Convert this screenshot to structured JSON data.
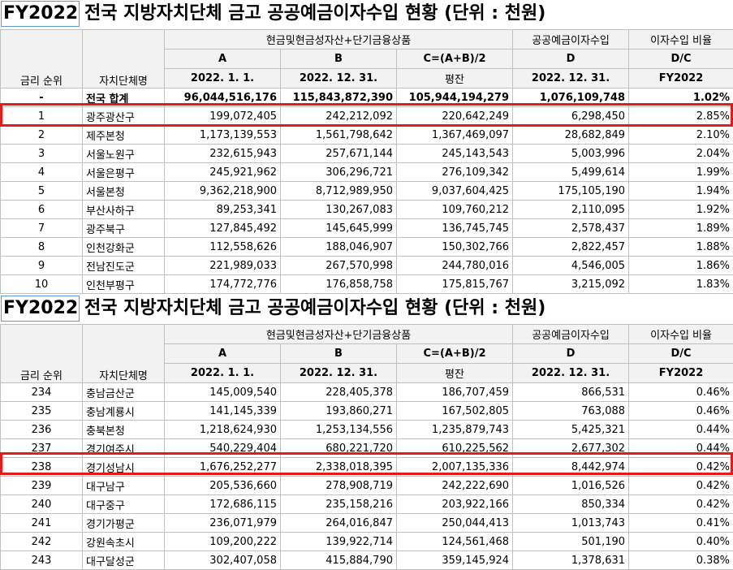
{
  "title": {
    "fy": "FY2022",
    "text": "전국 지방자치단체 금고 공공예금이자수입 현황 (단위 : 천원)"
  },
  "header": {
    "rank": "금리 순위",
    "name": "자치단체명",
    "group1": "현금및현금성자산+단기금융상품",
    "group2": "공공예금이자수입",
    "group3": "이자수입 비율",
    "colA": "A",
    "colB": "B",
    "colC": "C=(A+B)/2",
    "colD": "D",
    "colDC": "D/C",
    "dateA": "2022. 1. 1.",
    "dateB": "2022. 12. 31.",
    "avg": "평잔",
    "dateD": "2022. 12. 31.",
    "fyDC": "FY2022"
  },
  "table1": [
    {
      "rank": "-",
      "name": "전국 합계",
      "a": "96,044,516,176",
      "b": "115,843,872,390",
      "c": "105,944,194,279",
      "d": "1,076,109,748",
      "ratio": "1.02%"
    },
    {
      "rank": "1",
      "name": "광주광산구",
      "a": "199,072,405",
      "b": "242,212,092",
      "c": "220,642,249",
      "d": "6,298,450",
      "ratio": "2.85%"
    },
    {
      "rank": "2",
      "name": "제주본청",
      "a": "1,173,139,553",
      "b": "1,561,798,642",
      "c": "1,367,469,097",
      "d": "28,682,849",
      "ratio": "2.10%"
    },
    {
      "rank": "3",
      "name": "서울노원구",
      "a": "232,615,943",
      "b": "257,671,144",
      "c": "245,143,543",
      "d": "5,003,996",
      "ratio": "2.04%"
    },
    {
      "rank": "4",
      "name": "서울은평구",
      "a": "245,921,962",
      "b": "306,296,721",
      "c": "276,109,342",
      "d": "5,499,614",
      "ratio": "1.99%"
    },
    {
      "rank": "5",
      "name": "서울본청",
      "a": "9,362,218,900",
      "b": "8,712,989,950",
      "c": "9,037,604,425",
      "d": "175,105,190",
      "ratio": "1.94%"
    },
    {
      "rank": "6",
      "name": "부산사하구",
      "a": "89,253,341",
      "b": "130,267,083",
      "c": "109,760,212",
      "d": "2,110,095",
      "ratio": "1.92%"
    },
    {
      "rank": "7",
      "name": "광주북구",
      "a": "127,845,492",
      "b": "145,645,999",
      "c": "136,745,745",
      "d": "2,578,437",
      "ratio": "1.89%"
    },
    {
      "rank": "8",
      "name": "인천강화군",
      "a": "112,558,626",
      "b": "188,046,907",
      "c": "150,302,766",
      "d": "2,822,457",
      "ratio": "1.88%"
    },
    {
      "rank": "9",
      "name": "전남진도군",
      "a": "221,989,033",
      "b": "267,570,998",
      "c": "244,780,016",
      "d": "4,546,005",
      "ratio": "1.86%"
    },
    {
      "rank": "10",
      "name": "인천부평구",
      "a": "174,772,776",
      "b": "176,858,758",
      "c": "175,815,767",
      "d": "3,215,092",
      "ratio": "1.83%"
    }
  ],
  "table2": [
    {
      "rank": "234",
      "name": "충남금산군",
      "a": "145,009,540",
      "b": "228,405,378",
      "c": "186,707,459",
      "d": "866,531",
      "ratio": "0.46%"
    },
    {
      "rank": "235",
      "name": "충남계룡시",
      "a": "141,145,339",
      "b": "193,860,271",
      "c": "167,502,805",
      "d": "763,088",
      "ratio": "0.46%"
    },
    {
      "rank": "236",
      "name": "충북본청",
      "a": "1,218,624,930",
      "b": "1,253,134,556",
      "c": "1,235,879,743",
      "d": "5,425,321",
      "ratio": "0.44%"
    },
    {
      "rank": "237",
      "name": "경기여주시",
      "a": "540,229,404",
      "b": "680,221,720",
      "c": "610,225,562",
      "d": "2,677,302",
      "ratio": "0.44%"
    },
    {
      "rank": "238",
      "name": "경기성남시",
      "a": "1,676,252,277",
      "b": "2,338,018,395",
      "c": "2,007,135,336",
      "d": "8,442,974",
      "ratio": "0.42%"
    },
    {
      "rank": "239",
      "name": "대구남구",
      "a": "205,536,660",
      "b": "278,908,719",
      "c": "242,222,690",
      "d": "1,016,526",
      "ratio": "0.42%"
    },
    {
      "rank": "240",
      "name": "대구중구",
      "a": "172,686,115",
      "b": "235,158,216",
      "c": "203,922,166",
      "d": "850,334",
      "ratio": "0.42%"
    },
    {
      "rank": "241",
      "name": "경기가평군",
      "a": "236,071,979",
      "b": "264,016,847",
      "c": "250,044,413",
      "d": "1,013,743",
      "ratio": "0.41%"
    },
    {
      "rank": "242",
      "name": "강원속초시",
      "a": "109,200,222",
      "b": "139,922,714",
      "c": "124,561,468",
      "d": "501,190",
      "ratio": "0.40%"
    },
    {
      "rank": "243",
      "name": "대구달성군",
      "a": "302,407,058",
      "b": "415,884,790",
      "c": "359,145,924",
      "d": "1,378,631",
      "ratio": "0.38%"
    }
  ],
  "colors": {
    "highlight": "#e31b1b",
    "fyBorder": "#5b9bd5",
    "headerBg": "#f2f2f2",
    "grid": "#c0c0c0"
  }
}
